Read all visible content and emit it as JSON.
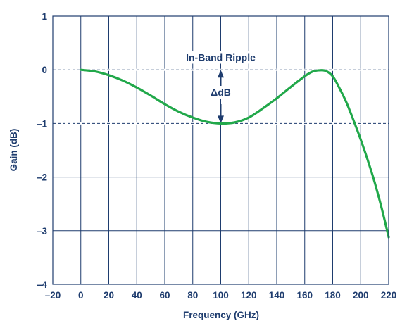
{
  "chart_data": {
    "type": "line",
    "xlabel": "Frequency (GHz)",
    "ylabel": "Gain (dB)",
    "xlim": [
      -20,
      220
    ],
    "ylim": [
      -4,
      1
    ],
    "x_ticks": [
      -20,
      0,
      20,
      40,
      60,
      80,
      100,
      120,
      140,
      160,
      180,
      200,
      220
    ],
    "y_ticks": [
      1,
      0,
      -1,
      -2,
      -3,
      -4
    ],
    "x_tick_labels": [
      "–20",
      "0",
      "20",
      "40",
      "60",
      "80",
      "100",
      "120",
      "140",
      "160",
      "180",
      "200",
      "220"
    ],
    "y_tick_labels": [
      "1",
      "0",
      "–1",
      "–2",
      "–3",
      "–4"
    ],
    "grid": true,
    "series": [
      {
        "color": "#21a84a",
        "x": [
          0,
          10,
          20,
          30,
          40,
          50,
          60,
          70,
          80,
          90,
          100,
          110,
          120,
          130,
          140,
          150,
          160,
          165,
          170,
          175,
          180,
          185,
          190,
          195,
          200,
          205,
          210,
          215,
          220
        ],
        "y": [
          0,
          -0.03,
          -0.1,
          -0.2,
          -0.33,
          -0.48,
          -0.64,
          -0.78,
          -0.89,
          -0.97,
          -1.0,
          -0.98,
          -0.89,
          -0.72,
          -0.53,
          -0.32,
          -0.12,
          -0.04,
          -0.01,
          -0.02,
          -0.12,
          -0.35,
          -0.62,
          -0.95,
          -1.3,
          -1.68,
          -2.1,
          -2.58,
          -3.12
        ]
      }
    ],
    "reference_lines": [
      {
        "y": 0,
        "style": "dashed"
      },
      {
        "y": -1,
        "style": "dashed"
      }
    ],
    "annotations": [
      {
        "text": "In-Band Ripple",
        "x": 100,
        "y": 0.18
      },
      {
        "text": "ΔdB",
        "x": 100,
        "y": -0.47
      }
    ],
    "arrow": {
      "x": 100,
      "from": 0,
      "to": -1
    }
  },
  "colors": {
    "axis_text": "#1e3c6e",
    "grid": "#1e3c6e",
    "curve": "#21a84a"
  }
}
